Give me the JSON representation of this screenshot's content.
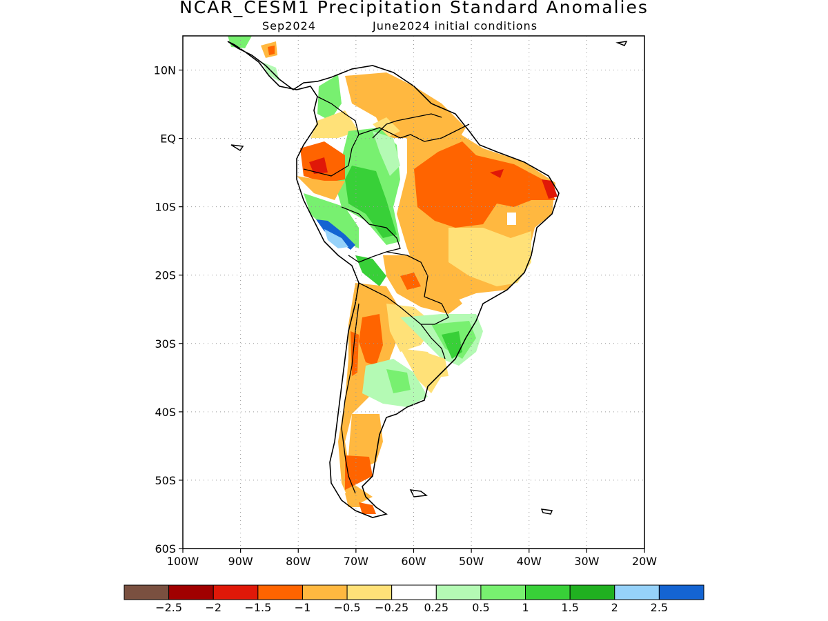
{
  "title": "NCAR_CESM1 Precipitation Standard Anomalies",
  "subtitle_left": "Sep2024",
  "subtitle_right": "June2024 initial conditions",
  "map": {
    "lon_range": [
      -100,
      -20
    ],
    "lat_range": [
      -60,
      15
    ],
    "x_ticks": [
      {
        "lon": -100,
        "label": "100W"
      },
      {
        "lon": -90,
        "label": "90W"
      },
      {
        "lon": -80,
        "label": "80W"
      },
      {
        "lon": -70,
        "label": "70W"
      },
      {
        "lon": -60,
        "label": "60W"
      },
      {
        "lon": -50,
        "label": "50W"
      },
      {
        "lon": -40,
        "label": "40W"
      },
      {
        "lon": -30,
        "label": "30W"
      },
      {
        "lon": -20,
        "label": "20W"
      }
    ],
    "y_ticks": [
      {
        "lat": 10,
        "label": "10N"
      },
      {
        "lat": 0,
        "label": "EQ"
      },
      {
        "lat": -10,
        "label": "10S"
      },
      {
        "lat": -20,
        "label": "20S"
      },
      {
        "lat": -30,
        "label": "30S"
      },
      {
        "lat": -40,
        "label": "40S"
      },
      {
        "lat": -50,
        "label": "50S"
      },
      {
        "lat": -60,
        "label": "60S"
      }
    ],
    "grid": "dotted"
  },
  "colorbar": {
    "colors": [
      "#7a5040",
      "#a00000",
      "#e01808",
      "#ff6400",
      "#ffb840",
      "#ffe178",
      "#ffffff",
      "#b4fab4",
      "#78f070",
      "#38d038",
      "#20b020",
      "#96d2fa",
      "#1464d2"
    ],
    "labels": [
      "-2.5",
      "-2",
      "-1.5",
      "-1",
      "-0.5",
      "-0.25",
      "0.25",
      "0.5",
      "1",
      "1.5",
      "2",
      "2.5"
    ]
  }
}
